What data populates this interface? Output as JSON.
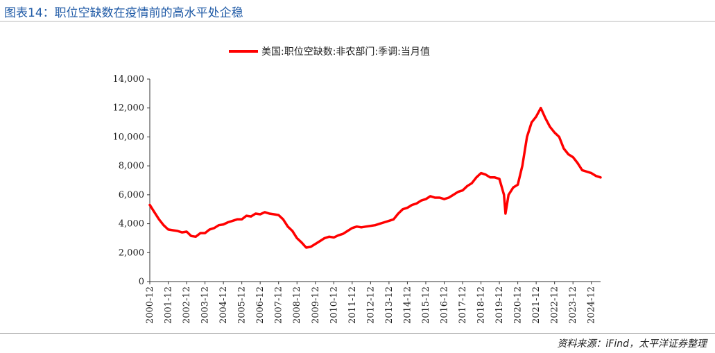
{
  "header": {
    "title": "图表14：职位空缺数在疫情前的高水平处企稳"
  },
  "footer": {
    "source": "资料来源：iFind，太平洋证券整理"
  },
  "chart_data": {
    "type": "line",
    "title": "",
    "xlabel": "",
    "ylabel": "",
    "ylim": [
      0,
      14000
    ],
    "y_ticks": [
      0,
      2000,
      4000,
      6000,
      8000,
      10000,
      12000,
      14000
    ],
    "y_tick_labels": [
      "0",
      "2,000",
      "4,000",
      "6,000",
      "8,000",
      "10,000",
      "12,000",
      "14,000"
    ],
    "x_tick_labels": [
      "2000-12",
      "2001-12",
      "2002-12",
      "2003-12",
      "2004-12",
      "2005-12",
      "2006-12",
      "2007-12",
      "2008-12",
      "2009-12",
      "2010-12",
      "2011-12",
      "2012-12",
      "2013-12",
      "2014-12",
      "2015-12",
      "2016-12",
      "2017-12",
      "2018-12",
      "2019-12",
      "2020-12",
      "2021-12",
      "2022-12",
      "2023-12",
      "2024-12"
    ],
    "xlim": [
      "2000-12",
      "2025-06"
    ],
    "grid": false,
    "legend": "top",
    "color": "#ff0000",
    "series": [
      {
        "name": "美国:职位空缺数:非农部门:季调:当月值",
        "x": [
          "2000-12",
          "2001-03",
          "2001-06",
          "2001-09",
          "2001-12",
          "2002-03",
          "2002-06",
          "2002-09",
          "2002-12",
          "2003-03",
          "2003-06",
          "2003-09",
          "2003-12",
          "2004-03",
          "2004-06",
          "2004-09",
          "2004-12",
          "2005-03",
          "2005-06",
          "2005-09",
          "2005-12",
          "2006-03",
          "2006-06",
          "2006-09",
          "2006-12",
          "2007-03",
          "2007-06",
          "2007-09",
          "2007-12",
          "2008-03",
          "2008-06",
          "2008-09",
          "2008-12",
          "2009-03",
          "2009-06",
          "2009-09",
          "2009-12",
          "2010-03",
          "2010-06",
          "2010-09",
          "2010-12",
          "2011-03",
          "2011-06",
          "2011-09",
          "2011-12",
          "2012-03",
          "2012-06",
          "2012-09",
          "2012-12",
          "2013-03",
          "2013-06",
          "2013-09",
          "2013-12",
          "2014-03",
          "2014-06",
          "2014-09",
          "2014-12",
          "2015-03",
          "2015-06",
          "2015-09",
          "2015-12",
          "2016-03",
          "2016-06",
          "2016-09",
          "2016-12",
          "2017-03",
          "2017-06",
          "2017-09",
          "2017-12",
          "2018-03",
          "2018-06",
          "2018-09",
          "2018-12",
          "2019-03",
          "2019-06",
          "2019-09",
          "2019-12",
          "2020-03",
          "2020-04",
          "2020-06",
          "2020-09",
          "2020-12",
          "2021-03",
          "2021-06",
          "2021-09",
          "2021-12",
          "2022-03",
          "2022-06",
          "2022-09",
          "2022-12",
          "2023-03",
          "2023-06",
          "2023-09",
          "2023-12",
          "2024-03",
          "2024-06",
          "2024-09",
          "2024-12",
          "2025-03",
          "2025-06"
        ],
        "values": [
          5300,
          4800,
          4300,
          3900,
          3600,
          3550,
          3500,
          3400,
          3450,
          3150,
          3100,
          3350,
          3350,
          3600,
          3700,
          3900,
          3950,
          4100,
          4200,
          4300,
          4300,
          4550,
          4500,
          4700,
          4650,
          4800,
          4700,
          4650,
          4600,
          4300,
          3800,
          3500,
          3000,
          2700,
          2350,
          2400,
          2600,
          2800,
          3000,
          3100,
          3050,
          3200,
          3300,
          3500,
          3700,
          3800,
          3750,
          3800,
          3850,
          3900,
          4000,
          4100,
          4200,
          4300,
          4700,
          5000,
          5100,
          5300,
          5400,
          5600,
          5700,
          5900,
          5800,
          5800,
          5700,
          5800,
          6000,
          6200,
          6300,
          6600,
          6800,
          7200,
          7500,
          7400,
          7200,
          7200,
          7100,
          6000,
          4700,
          6000,
          6500,
          6700,
          8000,
          10000,
          11000,
          11400,
          12000,
          11300,
          10700,
          10300,
          10000,
          9200,
          8800,
          8600,
          8200,
          7700,
          7600,
          7500,
          7300,
          7200
        ]
      }
    ]
  }
}
